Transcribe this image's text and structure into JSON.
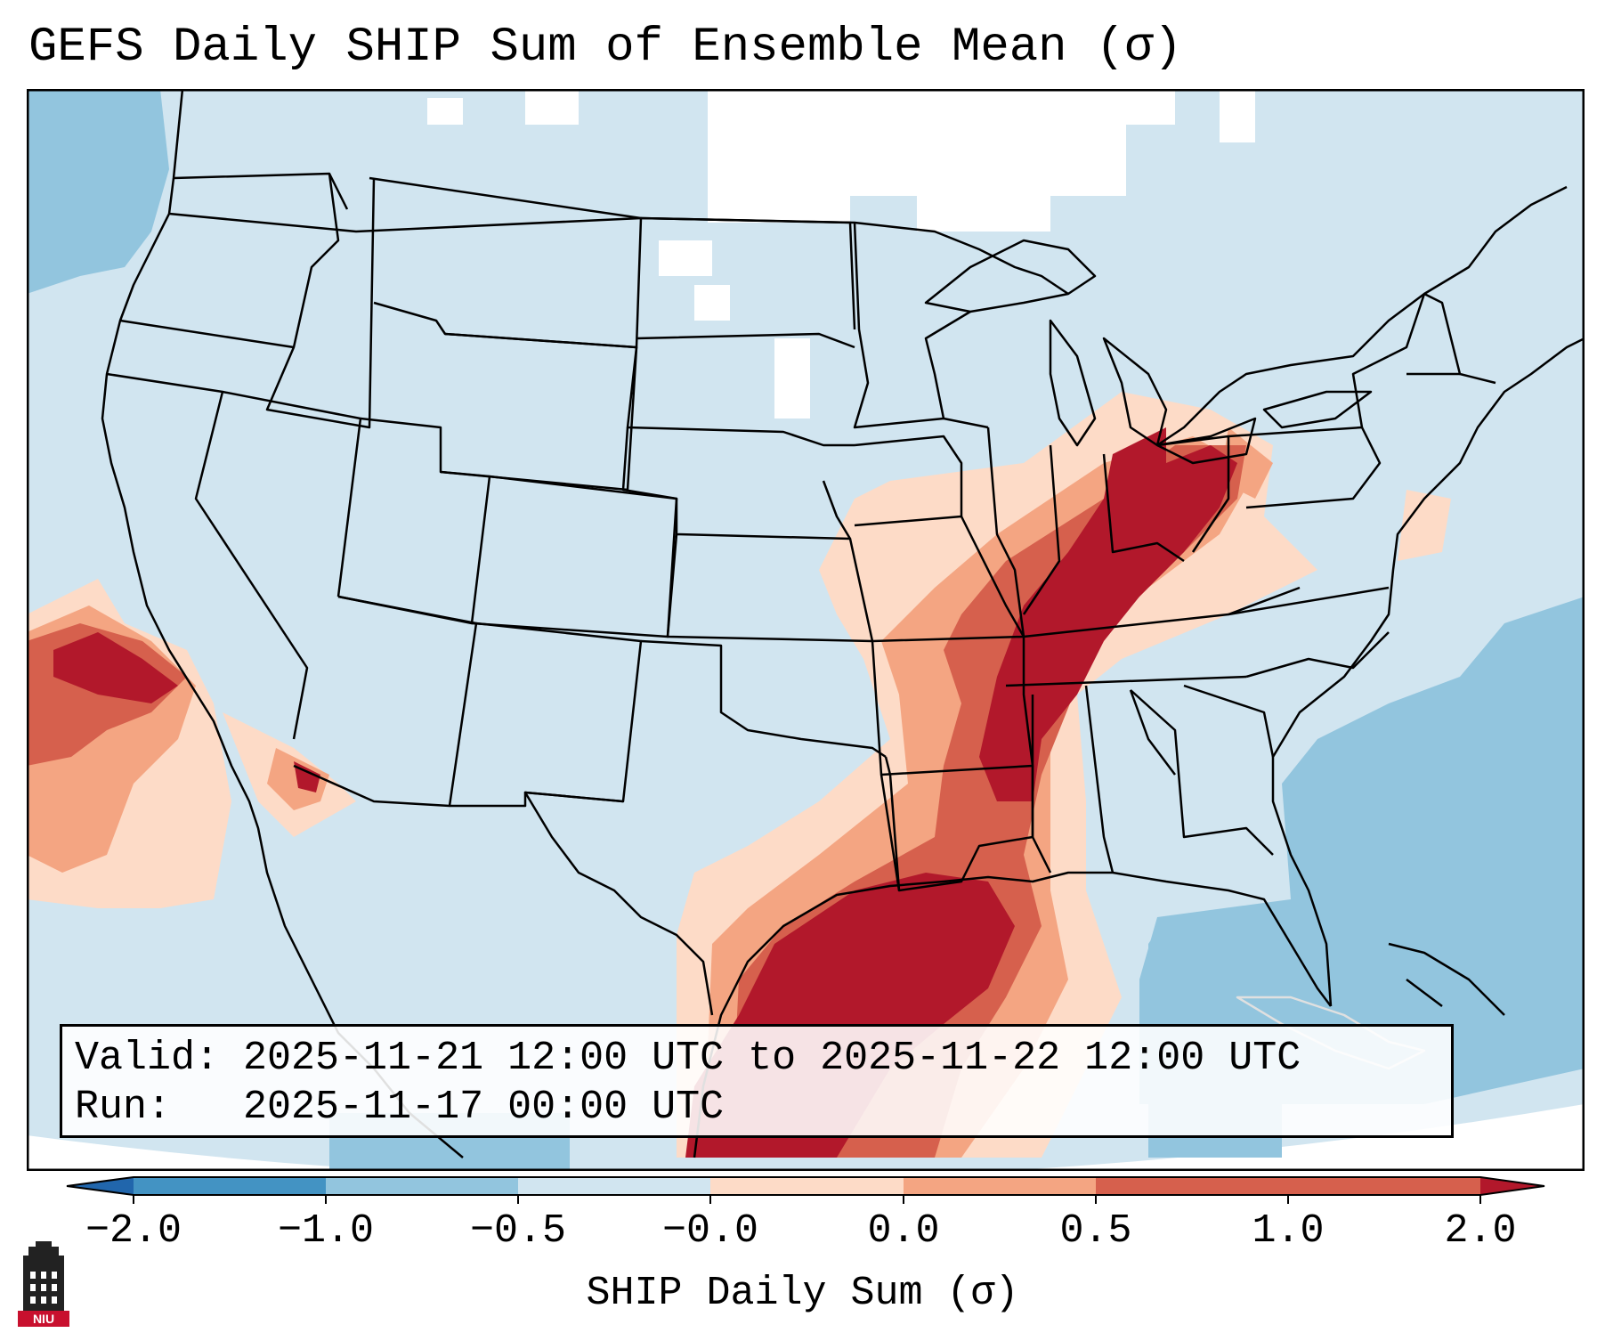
{
  "title": "GEFS Daily SHIP Sum of Ensemble Mean (σ)",
  "valid_line": "Valid: 2025-11-21 12:00 UTC to 2025-11-22 12:00 UTC",
  "run_line": "Run:   2025-11-17 00:00 UTC",
  "colorbar": {
    "label": "SHIP Daily Sum (σ)",
    "ticks": [
      "−2.0",
      "−1.0",
      "−0.5",
      "−0.0",
      "0.0",
      "0.5",
      "1.0",
      "2.0"
    ],
    "colors": [
      "#2166ac",
      "#4393c3",
      "#92c5de",
      "#d1e5f0",
      "#fddbc7",
      "#f4a582",
      "#d6604d",
      "#b2182b"
    ]
  },
  "logo": {
    "text": "NIU",
    "icon": "niu-logo-icon"
  },
  "colors": {
    "ocean": "#92c5de",
    "land_background": "#d1e5f0",
    "max_anomaly": "#b2182b"
  }
}
